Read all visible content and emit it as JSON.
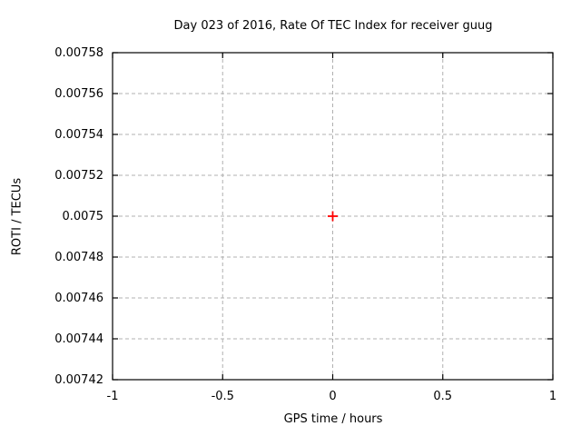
{
  "chart_data": {
    "type": "scatter",
    "title": "Day 023 of 2016, Rate Of TEC Index for receiver guug",
    "xlabel": "GPS time / hours",
    "ylabel": "ROTI / TECUs",
    "xlim": [
      -1,
      1
    ],
    "ylim": [
      0.00742,
      0.00758
    ],
    "x_ticks": [
      {
        "value": -1,
        "label": "-1"
      },
      {
        "value": -0.5,
        "label": "-0.5"
      },
      {
        "value": 0,
        "label": "0"
      },
      {
        "value": 0.5,
        "label": "0.5"
      },
      {
        "value": 1,
        "label": "1"
      }
    ],
    "y_ticks": [
      {
        "value": 0.00742,
        "label": "0.00742"
      },
      {
        "value": 0.00744,
        "label": "0.00744"
      },
      {
        "value": 0.00746,
        "label": "0.00746"
      },
      {
        "value": 0.00748,
        "label": "0.00748"
      },
      {
        "value": 0.0075,
        "label": "0.0075"
      },
      {
        "value": 0.00752,
        "label": "0.00752"
      },
      {
        "value": 0.00754,
        "label": "0.00754"
      },
      {
        "value": 0.00756,
        "label": "0.00756"
      },
      {
        "value": 0.00758,
        "label": "0.00758"
      }
    ],
    "grid": {
      "show": true,
      "style": "dashed",
      "mirror_ticks": true
    },
    "legend_position": "none",
    "series": [
      {
        "marker": "plus",
        "color": "#ff0000",
        "points": [
          {
            "x": 0,
            "y": 0.0075
          }
        ]
      }
    ],
    "colors": {
      "background": "#ffffff",
      "axis": "#000000",
      "grid": "#b0b0b0",
      "text": "#000000",
      "marker": "#ff0000"
    }
  }
}
